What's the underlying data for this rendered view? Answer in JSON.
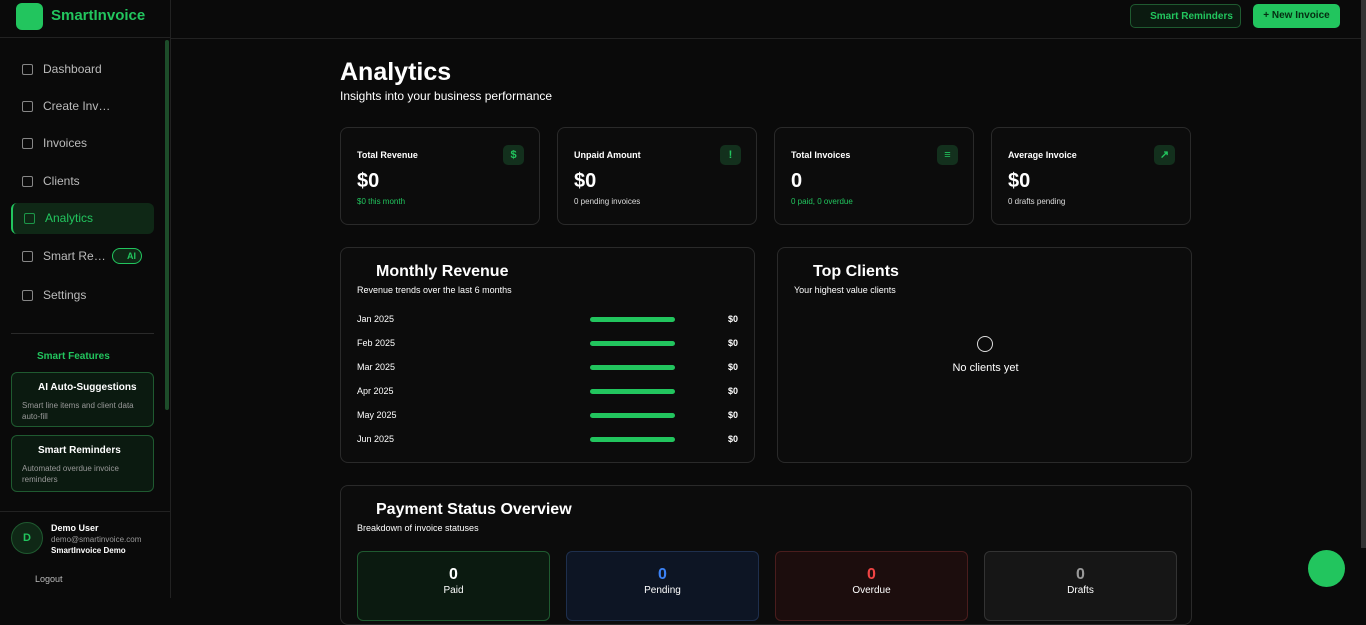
{
  "sidebar": {
    "brand": "SmartInvoice",
    "nav": [
      {
        "label": "Dashboard"
      },
      {
        "label": "Create Invoice"
      },
      {
        "label": "Invoices"
      },
      {
        "label": "Clients"
      },
      {
        "label": "Analytics"
      },
      {
        "label": "Smart Reminders",
        "badge": "AI"
      },
      {
        "label": "Settings"
      }
    ],
    "smart_features": {
      "title": "Smart Features",
      "items": [
        {
          "title": "AI Auto-Suggestions",
          "description": "Smart line items and client data auto-fill"
        },
        {
          "title": "Smart Reminders",
          "description": "Automated overdue invoice reminders"
        }
      ]
    },
    "user": {
      "initial": "D",
      "name": "Demo User",
      "email": "demo@smartinvoice.com",
      "org": "SmartInvoice Demo"
    },
    "logout": "Logout"
  },
  "topbar": {
    "buttons": [
      "Smart Reminders",
      "+ New Invoice"
    ]
  },
  "header": {
    "title": "Analytics",
    "subtitle": "Insights into your business performance"
  },
  "stats": [
    {
      "label": "Total Revenue",
      "icon": "$",
      "value": "$0",
      "note": "$0 this month"
    },
    {
      "label": "Unpaid Amount",
      "icon": "!",
      "value": "$0",
      "note": "0 pending invoices"
    },
    {
      "label": "Total Invoices",
      "icon": "≡",
      "value": "0",
      "note": "0 paid, 0 overdue"
    },
    {
      "label": "Average Invoice",
      "icon": "↗",
      "value": "$0",
      "note": "0 drafts pending"
    }
  ],
  "monthly_revenue": {
    "title": "Monthly Revenue",
    "subtitle": "Revenue trends over the last 6 months",
    "rows": [
      [
        "Jan 2025",
        "$0"
      ],
      [
        "Feb 2025",
        "$0"
      ],
      [
        "Mar 2025",
        "$0"
      ],
      [
        "Apr 2025",
        "$0"
      ],
      [
        "May 2025",
        "$0"
      ],
      [
        "Jun 2025",
        "$0"
      ]
    ]
  },
  "top_clients": {
    "title": "Top Clients",
    "subtitle": "Your highest value clients",
    "empty": "No clients yet"
  },
  "payment_status": {
    "title": "Payment Status Overview",
    "subtitle": "Breakdown of invoice statuses",
    "items": [
      {
        "count": 0,
        "label": "Paid"
      },
      {
        "count": 0,
        "label": "Pending"
      },
      {
        "count": 0,
        "label": "Overdue"
      },
      {
        "count": 0,
        "label": "Drafts"
      }
    ]
  }
}
